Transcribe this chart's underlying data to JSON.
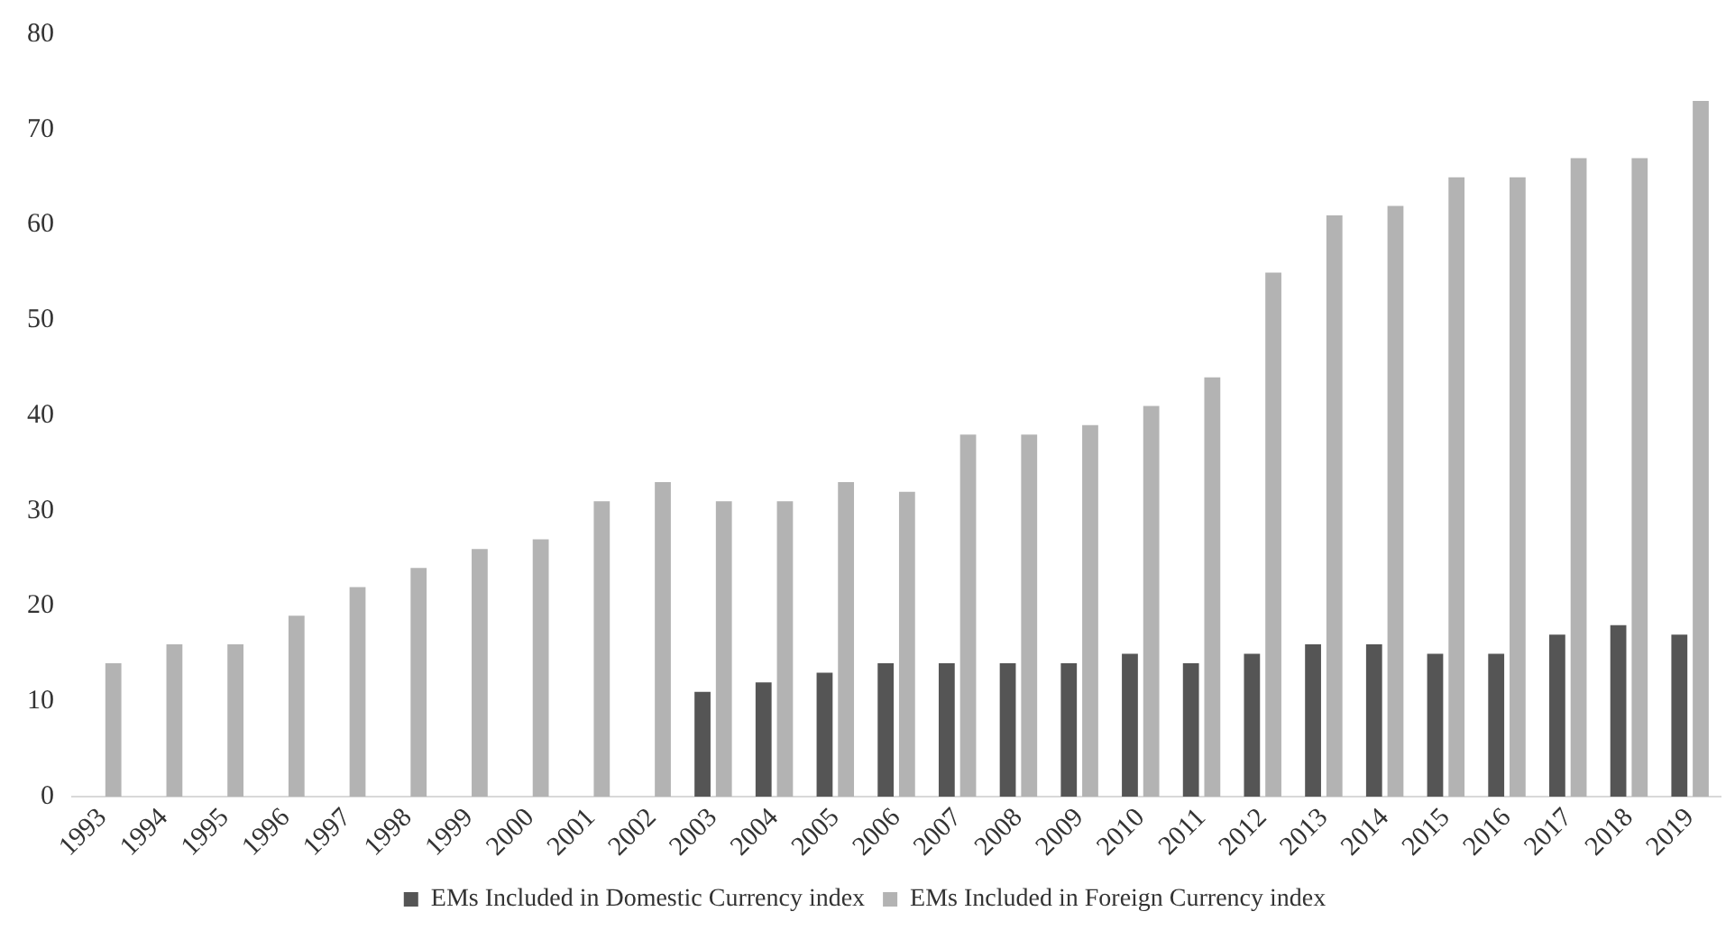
{
  "chart_data": {
    "type": "bar",
    "categories": [
      "1993",
      "1994",
      "1995",
      "1996",
      "1997",
      "1998",
      "1999",
      "2000",
      "2001",
      "2002",
      "2003",
      "2004",
      "2005",
      "2006",
      "2007",
      "2008",
      "2009",
      "2010",
      "2011",
      "2012",
      "2013",
      "2014",
      "2015",
      "2016",
      "2017",
      "2018",
      "2019"
    ],
    "series": [
      {
        "name": "EMs Included in Domestic Currency index",
        "color": "#555555",
        "values": [
          null,
          null,
          null,
          null,
          null,
          null,
          null,
          null,
          null,
          null,
          11,
          12,
          13,
          14,
          14,
          14,
          14,
          15,
          14,
          15,
          16,
          16,
          15,
          15,
          17,
          18,
          17
        ]
      },
      {
        "name": "EMs Included in Foreign Currency index",
        "color": "#b3b3b3",
        "values": [
          14,
          16,
          16,
          19,
          22,
          24,
          26,
          27,
          31,
          33,
          31,
          31,
          33,
          32,
          38,
          38,
          39,
          41,
          44,
          55,
          61,
          62,
          65,
          65,
          67,
          67,
          73
        ]
      }
    ],
    "ylim": [
      0,
      80
    ],
    "yticks": [
      0,
      10,
      20,
      30,
      40,
      50,
      60,
      70,
      80
    ],
    "grid": false,
    "legend": "bottom"
  }
}
